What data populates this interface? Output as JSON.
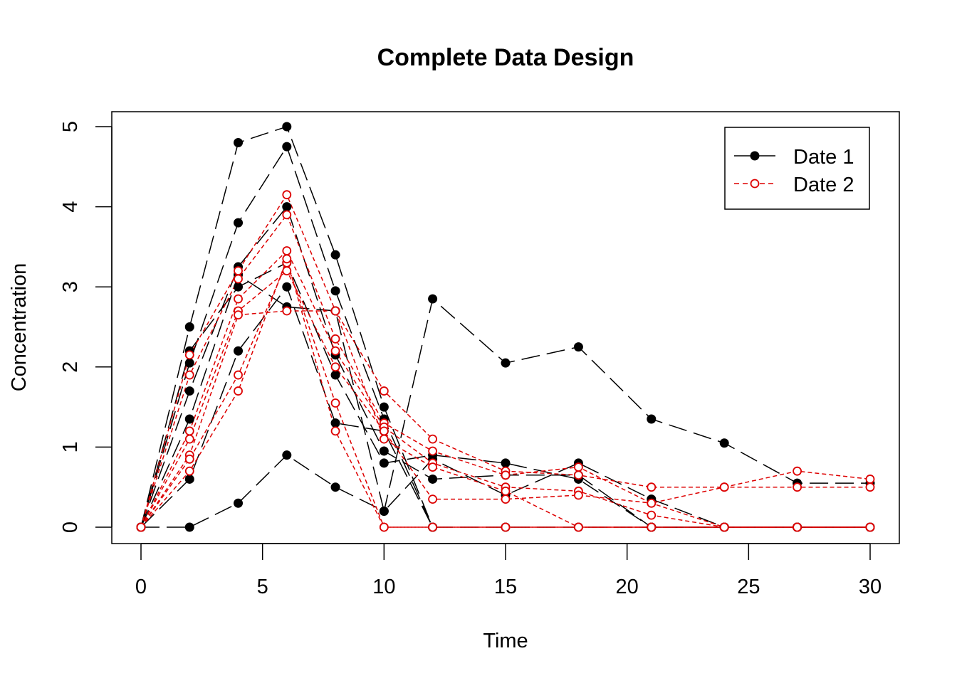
{
  "chart_data": {
    "type": "line",
    "title": "Complete Data Design",
    "xlabel": "Time",
    "ylabel": "Concentration",
    "xlim": [
      0,
      30
    ],
    "ylim": [
      0,
      5
    ],
    "x_ticks": [
      "0",
      "5",
      "10",
      "15",
      "20",
      "25",
      "30"
    ],
    "y_ticks": [
      "0",
      "1",
      "2",
      "3",
      "4",
      "5"
    ],
    "grid": false,
    "legend_position": "top-right",
    "legend": [
      {
        "label": "Date 1",
        "color": "#000000",
        "marker": "filled-circle",
        "line": "long-dash"
      },
      {
        "label": "Date 2",
        "color": "#dd0000",
        "marker": "open-circle",
        "line": "short-dash"
      }
    ],
    "groups": [
      {
        "label": "Date 1",
        "color": "#000000",
        "subjects": [
          {
            "x": [
              0,
              2,
              4,
              6,
              8,
              10,
              12,
              15,
              18,
              21,
              24,
              27,
              30
            ],
            "y": [
              0,
              0,
              0.3,
              0.9,
              0.5,
              0.2,
              2.85,
              2.05,
              2.25,
              1.35,
              1.05,
              0.55,
              0.55
            ]
          },
          {
            "x": [
              0,
              2,
              4,
              6,
              8,
              10,
              12
            ],
            "y": [
              0,
              2.5,
              4.8,
              5.0,
              3.4,
              1.5,
              0
            ]
          },
          {
            "x": [
              0,
              2,
              4,
              6,
              8,
              10,
              12
            ],
            "y": [
              0,
              2.05,
              3.8,
              4.75,
              2.95,
              1.35,
              0
            ]
          },
          {
            "x": [
              0,
              2,
              4,
              6,
              8,
              10,
              12,
              15,
              18,
              21,
              24,
              27,
              30
            ],
            "y": [
              0,
              1.7,
              3.25,
              4.0,
              2.15,
              0.95,
              0.6,
              0.65,
              0.65,
              0,
              0,
              0,
              0
            ]
          },
          {
            "x": [
              0,
              2,
              4,
              6,
              8,
              10,
              12,
              15,
              18,
              21,
              24,
              27,
              30
            ],
            "y": [
              0,
              2.2,
              3.0,
              3.3,
              1.9,
              0.8,
              0.9,
              0.8,
              0.6,
              0,
              0,
              0,
              0
            ]
          },
          {
            "x": [
              0,
              2,
              4,
              6,
              8,
              10,
              12,
              15,
              18,
              21,
              24,
              27,
              30
            ],
            "y": [
              0,
              1.35,
              3.15,
              2.75,
              2.7,
              0.2,
              0.85,
              0.4,
              0.8,
              0.35,
              0,
              0,
              0
            ]
          },
          {
            "x": [
              0,
              2,
              4,
              6,
              8,
              10,
              12,
              15,
              18,
              21,
              24,
              27,
              30
            ],
            "y": [
              0,
              0.6,
              2.2,
              3.0,
              1.3,
              1.2,
              0,
              0,
              0,
              0,
              0,
              0,
              0
            ]
          }
        ]
      },
      {
        "label": "Date 2",
        "color": "#dd0000",
        "subjects": [
          {
            "x": [
              0,
              2,
              4,
              6,
              8,
              10,
              12,
              15,
              18,
              21,
              24,
              27,
              30
            ],
            "y": [
              0,
              2.15,
              3.2,
              4.15,
              2.7,
              1.7,
              1.1,
              0.7,
              0.65,
              0.5,
              0.5,
              0.7,
              0.6
            ]
          },
          {
            "x": [
              0,
              2,
              4,
              6,
              8,
              10,
              12,
              15,
              18,
              21,
              24,
              27,
              30
            ],
            "y": [
              0,
              1.9,
              3.1,
              3.9,
              2.35,
              1.3,
              0.95,
              0.65,
              0.75,
              0.3,
              0.5,
              0.5,
              0.5
            ]
          },
          {
            "x": [
              0,
              2,
              4,
              6,
              8,
              10,
              12,
              15,
              18,
              21,
              24,
              27,
              30
            ],
            "y": [
              0,
              1.2,
              2.85,
              3.45,
              2.2,
              1.25,
              0.8,
              0.5,
              0.45,
              0.15,
              0,
              0,
              0
            ]
          },
          {
            "x": [
              0,
              2,
              4,
              6,
              8,
              10,
              12,
              15,
              18,
              21,
              24,
              27,
              30
            ],
            "y": [
              0,
              1.1,
              2.7,
              3.2,
              2.0,
              1.2,
              0.35,
              0.35,
              0.4,
              0.3,
              0,
              0,
              0
            ]
          },
          {
            "x": [
              0,
              2,
              4,
              6,
              8,
              10,
              12,
              15,
              18,
              21,
              24,
              27,
              30
            ],
            "y": [
              0,
              0.9,
              2.65,
              2.7,
              2.7,
              1.1,
              0.75,
              0.45,
              0,
              0,
              0,
              0,
              0
            ]
          },
          {
            "x": [
              0,
              2,
              4,
              6,
              8,
              10,
              12,
              15,
              18,
              21,
              24,
              27,
              30
            ],
            "y": [
              0,
              0.85,
              1.9,
              3.3,
              1.55,
              0,
              0,
              0,
              0,
              0,
              0,
              0,
              0
            ]
          },
          {
            "x": [
              0,
              2,
              4,
              6,
              8,
              10,
              12,
              15,
              18,
              21,
              24,
              27,
              30
            ],
            "y": [
              0,
              0.7,
              1.7,
              3.35,
              1.2,
              0,
              0,
              0,
              0,
              0,
              0,
              0,
              0
            ]
          }
        ]
      }
    ]
  }
}
